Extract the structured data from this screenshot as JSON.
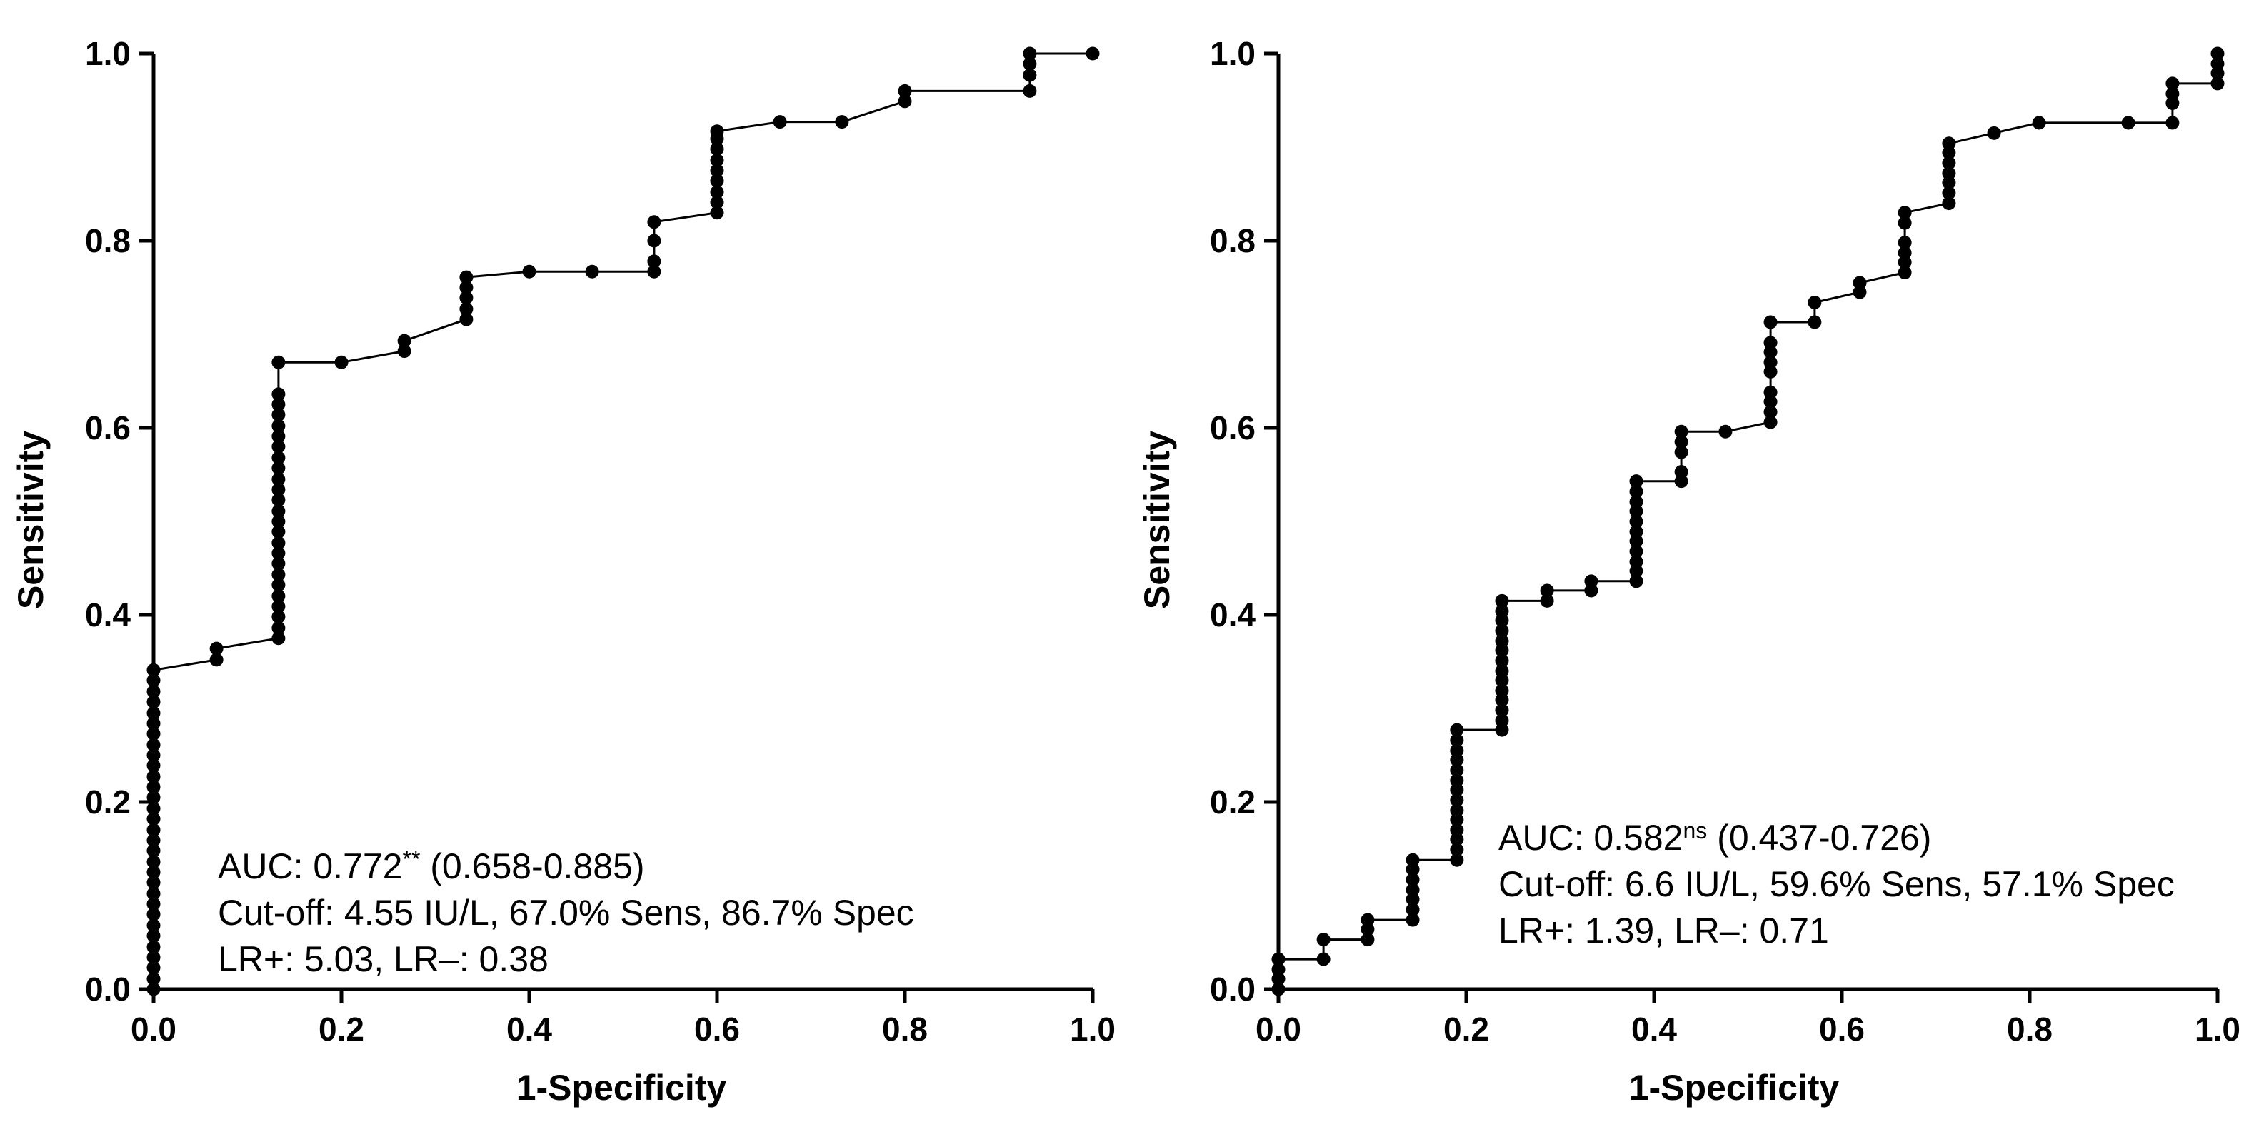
{
  "chart_data": [
    {
      "type": "line",
      "title": "",
      "xlabel": "1-Specificity",
      "ylabel": "Sensitivity",
      "xlim": [
        0,
        1
      ],
      "ylim": [
        0,
        1
      ],
      "xticks": [
        "0.0",
        "0.2",
        "0.4",
        "0.6",
        "0.8",
        "1.0"
      ],
      "yticks": [
        "0.0",
        "0.2",
        "0.4",
        "0.6",
        "0.8",
        "1.0"
      ],
      "grid": false,
      "annotation": {
        "auc_label": "AUC: 0.772",
        "auc_sup": "**",
        "auc_ci": " (0.658-0.885)",
        "cutoff": "Cut-off: 4.55 IU/L, 67.0% Sens, 86.7% Spec",
        "lr": "LR+: 5.03, LR–: 0.38"
      },
      "series": [
        {
          "name": "ROC",
          "points": [
            [
              0,
              0
            ],
            [
              0,
              0.011
            ],
            [
              0,
              0.023
            ],
            [
              0,
              0.034
            ],
            [
              0,
              0.045
            ],
            [
              0,
              0.057
            ],
            [
              0,
              0.068
            ],
            [
              0,
              0.08
            ],
            [
              0,
              0.091
            ],
            [
              0,
              0.102
            ],
            [
              0,
              0.114
            ],
            [
              0,
              0.125
            ],
            [
              0,
              0.136
            ],
            [
              0,
              0.148
            ],
            [
              0,
              0.159
            ],
            [
              0,
              0.17
            ],
            [
              0,
              0.182
            ],
            [
              0,
              0.193
            ],
            [
              0,
              0.205
            ],
            [
              0,
              0.216
            ],
            [
              0,
              0.227
            ],
            [
              0,
              0.239
            ],
            [
              0,
              0.25
            ],
            [
              0,
              0.261
            ],
            [
              0,
              0.273
            ],
            [
              0,
              0.284
            ],
            [
              0,
              0.295
            ],
            [
              0,
              0.307
            ],
            [
              0,
              0.318
            ],
            [
              0,
              0.33
            ],
            [
              0,
              0.341
            ],
            [
              0.067,
              0.352
            ],
            [
              0.067,
              0.364
            ],
            [
              0.133,
              0.375
            ],
            [
              0.133,
              0.386
            ],
            [
              0.133,
              0.398
            ],
            [
              0.133,
              0.409
            ],
            [
              0.133,
              0.42
            ],
            [
              0.133,
              0.432
            ],
            [
              0.133,
              0.443
            ],
            [
              0.133,
              0.455
            ],
            [
              0.133,
              0.466
            ],
            [
              0.133,
              0.477
            ],
            [
              0.133,
              0.489
            ],
            [
              0.133,
              0.5
            ],
            [
              0.133,
              0.511
            ],
            [
              0.133,
              0.523
            ],
            [
              0.133,
              0.534
            ],
            [
              0.133,
              0.545
            ],
            [
              0.133,
              0.557
            ],
            [
              0.133,
              0.568
            ],
            [
              0.133,
              0.58
            ],
            [
              0.133,
              0.591
            ],
            [
              0.133,
              0.602
            ],
            [
              0.133,
              0.614
            ],
            [
              0.133,
              0.625
            ],
            [
              0.133,
              0.636
            ],
            [
              0.133,
              0.67
            ],
            [
              0.2,
              0.67
            ],
            [
              0.267,
              0.682
            ],
            [
              0.267,
              0.693
            ],
            [
              0.333,
              0.716
            ],
            [
              0.333,
              0.727
            ],
            [
              0.333,
              0.739
            ],
            [
              0.333,
              0.75
            ],
            [
              0.333,
              0.761
            ],
            [
              0.4,
              0.767
            ],
            [
              0.467,
              0.767
            ],
            [
              0.533,
              0.767
            ],
            [
              0.533,
              0.778
            ],
            [
              0.533,
              0.8
            ],
            [
              0.533,
              0.82
            ],
            [
              0.6,
              0.83
            ],
            [
              0.6,
              0.841
            ],
            [
              0.6,
              0.852
            ],
            [
              0.6,
              0.864
            ],
            [
              0.6,
              0.875
            ],
            [
              0.6,
              0.886
            ],
            [
              0.6,
              0.898
            ],
            [
              0.6,
              0.909
            ],
            [
              0.6,
              0.917
            ],
            [
              0.667,
              0.927
            ],
            [
              0.733,
              0.927
            ],
            [
              0.8,
              0.949
            ],
            [
              0.8,
              0.96
            ],
            [
              0.933,
              0.96
            ],
            [
              0.933,
              0.977
            ],
            [
              0.933,
              0.989
            ],
            [
              0.933,
              1.0
            ],
            [
              1.0,
              1.0
            ]
          ]
        }
      ]
    },
    {
      "type": "line",
      "title": "",
      "xlabel": "1-Specificity",
      "ylabel": "Sensitivity",
      "xlim": [
        0,
        1
      ],
      "ylim": [
        0,
        1
      ],
      "xticks": [
        "0.0",
        "0.2",
        "0.4",
        "0.6",
        "0.8",
        "1.0"
      ],
      "yticks": [
        "0.0",
        "0.2",
        "0.4",
        "0.6",
        "0.8",
        "1.0"
      ],
      "grid": false,
      "annotation": {
        "auc_label": "AUC: 0.582",
        "auc_sup": "ns",
        "auc_ci": " (0.437-0.726)",
        "cutoff": "Cut-off: 6.6 IU/L, 59.6% Sens, 57.1% Spec",
        "lr": "LR+: 1.39, LR–: 0.71"
      },
      "series": [
        {
          "name": "ROC",
          "points": [
            [
              0,
              0
            ],
            [
              0,
              0.011
            ],
            [
              0,
              0.021
            ],
            [
              0,
              0.032
            ],
            [
              0.048,
              0.032
            ],
            [
              0.048,
              0.053
            ],
            [
              0.095,
              0.053
            ],
            [
              0.095,
              0.064
            ],
            [
              0.095,
              0.074
            ],
            [
              0.143,
              0.074
            ],
            [
              0.143,
              0.085
            ],
            [
              0.143,
              0.096
            ],
            [
              0.143,
              0.106
            ],
            [
              0.143,
              0.117
            ],
            [
              0.143,
              0.128
            ],
            [
              0.143,
              0.138
            ],
            [
              0.19,
              0.138
            ],
            [
              0.19,
              0.149
            ],
            [
              0.19,
              0.16
            ],
            [
              0.19,
              0.17
            ],
            [
              0.19,
              0.181
            ],
            [
              0.19,
              0.191
            ],
            [
              0.19,
              0.202
            ],
            [
              0.19,
              0.213
            ],
            [
              0.19,
              0.223
            ],
            [
              0.19,
              0.234
            ],
            [
              0.19,
              0.245
            ],
            [
              0.19,
              0.255
            ],
            [
              0.19,
              0.266
            ],
            [
              0.19,
              0.277
            ],
            [
              0.238,
              0.277
            ],
            [
              0.238,
              0.287
            ],
            [
              0.238,
              0.298
            ],
            [
              0.238,
              0.309
            ],
            [
              0.238,
              0.319
            ],
            [
              0.238,
              0.33
            ],
            [
              0.238,
              0.34
            ],
            [
              0.238,
              0.351
            ],
            [
              0.238,
              0.362
            ],
            [
              0.238,
              0.372
            ],
            [
              0.238,
              0.383
            ],
            [
              0.238,
              0.394
            ],
            [
              0.238,
              0.404
            ],
            [
              0.238,
              0.415
            ],
            [
              0.286,
              0.415
            ],
            [
              0.286,
              0.426
            ],
            [
              0.333,
              0.426
            ],
            [
              0.333,
              0.436
            ],
            [
              0.381,
              0.436
            ],
            [
              0.381,
              0.447
            ],
            [
              0.381,
              0.457
            ],
            [
              0.381,
              0.468
            ],
            [
              0.381,
              0.479
            ],
            [
              0.381,
              0.489
            ],
            [
              0.381,
              0.5
            ],
            [
              0.381,
              0.511
            ],
            [
              0.381,
              0.521
            ],
            [
              0.381,
              0.532
            ],
            [
              0.381,
              0.543
            ],
            [
              0.429,
              0.543
            ],
            [
              0.429,
              0.553
            ],
            [
              0.429,
              0.574
            ],
            [
              0.429,
              0.585
            ],
            [
              0.429,
              0.596
            ],
            [
              0.476,
              0.596
            ],
            [
              0.524,
              0.606
            ],
            [
              0.524,
              0.617
            ],
            [
              0.524,
              0.628
            ],
            [
              0.524,
              0.638
            ],
            [
              0.524,
              0.66
            ],
            [
              0.524,
              0.67
            ],
            [
              0.524,
              0.681
            ],
            [
              0.524,
              0.691
            ],
            [
              0.524,
              0.713
            ],
            [
              0.571,
              0.713
            ],
            [
              0.571,
              0.734
            ],
            [
              0.619,
              0.745
            ],
            [
              0.619,
              0.755
            ],
            [
              0.667,
              0.766
            ],
            [
              0.667,
              0.777
            ],
            [
              0.667,
              0.787
            ],
            [
              0.667,
              0.798
            ],
            [
              0.667,
              0.819
            ],
            [
              0.667,
              0.83
            ],
            [
              0.714,
              0.84
            ],
            [
              0.714,
              0.851
            ],
            [
              0.714,
              0.862
            ],
            [
              0.714,
              0.872
            ],
            [
              0.714,
              0.883
            ],
            [
              0.714,
              0.894
            ],
            [
              0.714,
              0.904
            ],
            [
              0.762,
              0.915
            ],
            [
              0.81,
              0.926
            ],
            [
              0.905,
              0.926
            ],
            [
              0.952,
              0.926
            ],
            [
              0.952,
              0.947
            ],
            [
              0.952,
              0.957
            ],
            [
              0.952,
              0.968
            ],
            [
              1.0,
              0.968
            ],
            [
              1.0,
              0.979
            ],
            [
              1.0,
              0.989
            ],
            [
              1.0,
              1.0
            ]
          ]
        }
      ]
    }
  ]
}
